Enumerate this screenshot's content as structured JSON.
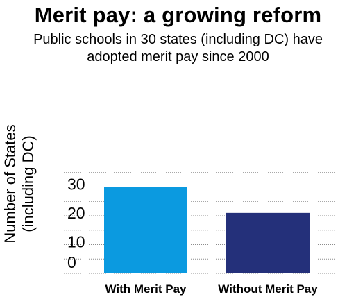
{
  "chart_data": {
    "type": "bar",
    "title": "Merit pay: a growing reform",
    "subtitle": "Public schools in 30 states (including DC) have adopted merit pay since 2000",
    "ylabel": "Number of States (including DC)",
    "xlabel": "",
    "categories": [
      "With Merit Pay",
      "Without Merit Pay"
    ],
    "values": [
      30,
      21
    ],
    "colors": [
      "#0b9ae0",
      "#24307a"
    ],
    "ylim": [
      0,
      35
    ],
    "yticks": [
      0,
      10,
      20,
      30
    ],
    "grid": "horizontal-dotted",
    "legend": "none"
  }
}
